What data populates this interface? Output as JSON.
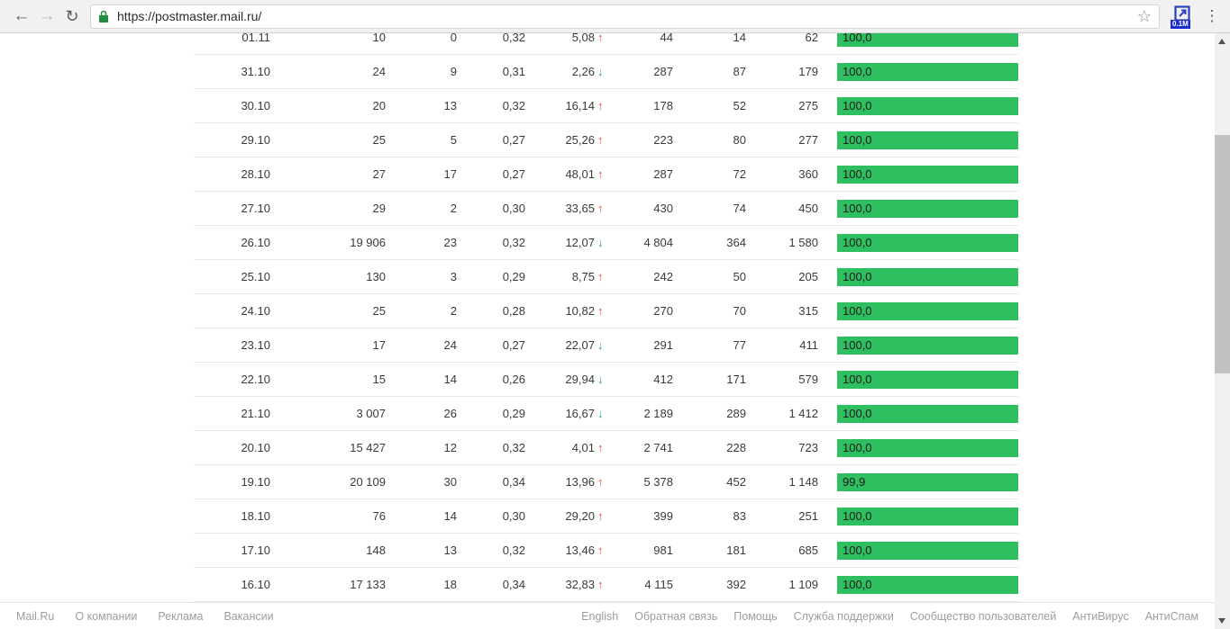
{
  "browser": {
    "url": "https://postmaster.mail.ru/",
    "extension_badge": "0.1M"
  },
  "colors": {
    "bar_green": "#2ebf60",
    "trend_up": "#e2512c",
    "trend_down": "#2aa54d",
    "lock_green": "#1e8e3e",
    "extension_blue": "#2b3fc4"
  },
  "table": {
    "rows": [
      {
        "date": "01.11",
        "col1": "10",
        "col2": "0",
        "col3": "0,32",
        "rate": "5,08",
        "trend": "up",
        "col4": "44",
        "col5": "14",
        "col6": "62",
        "bar_label": "100,0",
        "bar_pct": 100
      },
      {
        "date": "31.10",
        "col1": "24",
        "col2": "9",
        "col3": "0,31",
        "rate": "2,26",
        "trend": "down",
        "col4": "287",
        "col5": "87",
        "col6": "179",
        "bar_label": "100,0",
        "bar_pct": 100
      },
      {
        "date": "30.10",
        "col1": "20",
        "col2": "13",
        "col3": "0,32",
        "rate": "16,14",
        "trend": "up",
        "col4": "178",
        "col5": "52",
        "col6": "275",
        "bar_label": "100,0",
        "bar_pct": 100
      },
      {
        "date": "29.10",
        "col1": "25",
        "col2": "5",
        "col3": "0,27",
        "rate": "25,26",
        "trend": "up",
        "col4": "223",
        "col5": "80",
        "col6": "277",
        "bar_label": "100,0",
        "bar_pct": 100
      },
      {
        "date": "28.10",
        "col1": "27",
        "col2": "17",
        "col3": "0,27",
        "rate": "48,01",
        "trend": "up",
        "col4": "287",
        "col5": "72",
        "col6": "360",
        "bar_label": "100,0",
        "bar_pct": 100
      },
      {
        "date": "27.10",
        "col1": "29",
        "col2": "2",
        "col3": "0,30",
        "rate": "33,65",
        "trend": "up",
        "col4": "430",
        "col5": "74",
        "col6": "450",
        "bar_label": "100,0",
        "bar_pct": 100
      },
      {
        "date": "26.10",
        "col1": "19 906",
        "col2": "23",
        "col3": "0,32",
        "rate": "12,07",
        "trend": "down",
        "col4": "4 804",
        "col5": "364",
        "col6": "1 580",
        "bar_label": "100,0",
        "bar_pct": 100
      },
      {
        "date": "25.10",
        "col1": "130",
        "col2": "3",
        "col3": "0,29",
        "rate": "8,75",
        "trend": "up",
        "col4": "242",
        "col5": "50",
        "col6": "205",
        "bar_label": "100,0",
        "bar_pct": 100
      },
      {
        "date": "24.10",
        "col1": "25",
        "col2": "2",
        "col3": "0,28",
        "rate": "10,82",
        "trend": "up",
        "col4": "270",
        "col5": "70",
        "col6": "315",
        "bar_label": "100,0",
        "bar_pct": 100
      },
      {
        "date": "23.10",
        "col1": "17",
        "col2": "24",
        "col3": "0,27",
        "rate": "22,07",
        "trend": "down",
        "col4": "291",
        "col5": "77",
        "col6": "411",
        "bar_label": "100,0",
        "bar_pct": 100
      },
      {
        "date": "22.10",
        "col1": "15",
        "col2": "14",
        "col3": "0,26",
        "rate": "29,94",
        "trend": "down",
        "col4": "412",
        "col5": "171",
        "col6": "579",
        "bar_label": "100,0",
        "bar_pct": 100
      },
      {
        "date": "21.10",
        "col1": "3 007",
        "col2": "26",
        "col3": "0,29",
        "rate": "16,67",
        "trend": "down",
        "col4": "2 189",
        "col5": "289",
        "col6": "1 412",
        "bar_label": "100,0",
        "bar_pct": 100
      },
      {
        "date": "20.10",
        "col1": "15 427",
        "col2": "12",
        "col3": "0,32",
        "rate": "4,01",
        "trend": "up",
        "col4": "2 741",
        "col5": "228",
        "col6": "723",
        "bar_label": "100,0",
        "bar_pct": 100
      },
      {
        "date": "19.10",
        "col1": "20 109",
        "col2": "30",
        "col3": "0,34",
        "rate": "13,96",
        "trend": "up",
        "col4": "5 378",
        "col5": "452",
        "col6": "1 148",
        "bar_label": "99,9",
        "bar_pct": 99.9
      },
      {
        "date": "18.10",
        "col1": "76",
        "col2": "14",
        "col3": "0,30",
        "rate": "29,20",
        "trend": "up",
        "col4": "399",
        "col5": "83",
        "col6": "251",
        "bar_label": "100,0",
        "bar_pct": 100
      },
      {
        "date": "17.10",
        "col1": "148",
        "col2": "13",
        "col3": "0,32",
        "rate": "13,46",
        "trend": "up",
        "col4": "981",
        "col5": "181",
        "col6": "685",
        "bar_label": "100,0",
        "bar_pct": 100
      },
      {
        "date": "16.10",
        "col1": "17 133",
        "col2": "18",
        "col3": "0,34",
        "rate": "32,83",
        "trend": "up",
        "col4": "4 115",
        "col5": "392",
        "col6": "1 109",
        "bar_label": "100,0",
        "bar_pct": 100
      }
    ]
  },
  "footer": {
    "left": [
      "Mail.Ru",
      "О компании",
      "Реклама",
      "Вакансии"
    ],
    "right": [
      "English",
      "Обратная связь",
      "Помощь",
      "Служба поддержки",
      "Сообщество пользователей",
      "АнтиВирус",
      "АнтиСпам"
    ]
  }
}
